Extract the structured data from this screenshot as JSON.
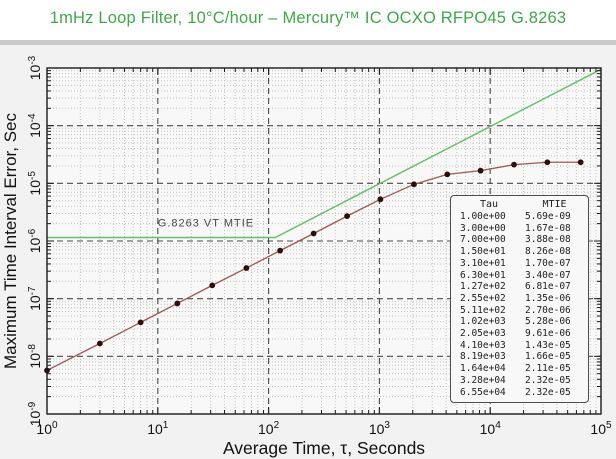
{
  "title": "1mHz Loop Filter, 10°C/hour – Mercury™ IC OCXO RFPO45 G.8263",
  "colors": {
    "title_green": "#3fa84c",
    "mask_line_green": "#6abf69",
    "series_line_red": "#9a5a50",
    "marker_dark_red": "#2d0e0e",
    "grid_major": "#4a4a4a",
    "grid_minor": "#c4c4c4",
    "frame": "#1a1a1a",
    "panel_bg": "#f2f2f2",
    "plot_bg": "#f8f8f8",
    "legend_bg": "#f8f8f8",
    "divider_gray": "#c9c9c9",
    "text_dark": "#111111",
    "annotation_gray": "#4a4a4a"
  },
  "chart_data": {
    "type": "line",
    "title": "1mHz Loop Filter, 10°C/hour – Mercury™ IC OCXO RFPO45 G.8263",
    "xlabel": "Average Time, τ, Seconds",
    "ylabel": "Maximum Time Interval Error, Sec",
    "xscale": "log",
    "yscale": "log",
    "xlim": [
      1,
      100000
    ],
    "ylim": [
      1e-09,
      0.001
    ],
    "x_tick_exponents": [
      0,
      1,
      2,
      3,
      4,
      5
    ],
    "y_tick_exponents": [
      -3,
      -4,
      -5,
      -6,
      -7,
      -8,
      -9
    ],
    "grid": "major dashed dark, minor dotted light",
    "legend_position": "lower right box",
    "annotation": {
      "text": "G.8263 VT MTIE",
      "tau": 10,
      "mtie": 1.8e-06
    },
    "series": [
      {
        "name": "G.8263 VT MTIE mask",
        "color_key": "mask_line_green",
        "markers": false,
        "points": [
          [
            1,
            1.15e-06
          ],
          [
            115,
            1.15e-06
          ],
          [
            100000,
            0.00095
          ]
        ]
      },
      {
        "name": "Measured MTIE",
        "color_key": "series_line_red",
        "markers": true,
        "points": [
          [
            1.0,
            5.69e-09
          ],
          [
            3.0,
            1.67e-08
          ],
          [
            7.0,
            3.88e-08
          ],
          [
            15.0,
            8.26e-08
          ],
          [
            31.0,
            1.7e-07
          ],
          [
            63.0,
            3.4e-07
          ],
          [
            127,
            6.81e-07
          ],
          [
            255,
            1.35e-06
          ],
          [
            511,
            2.7e-06
          ],
          [
            1020,
            5.28e-06
          ],
          [
            2050,
            9.61e-06
          ],
          [
            4100,
            1.43e-05
          ],
          [
            8190,
            1.66e-05
          ],
          [
            16400,
            2.11e-05
          ],
          [
            32800,
            2.32e-05
          ],
          [
            65500,
            2.32e-05
          ]
        ]
      }
    ],
    "legend_table": {
      "headers": [
        "Tau",
        "MTIE"
      ],
      "rows": [
        [
          "1.00e+00",
          "5.69e-09"
        ],
        [
          "3.00e+00",
          "1.67e-08"
        ],
        [
          "7.00e+00",
          "3.88e-08"
        ],
        [
          "1.50e+01",
          "8.26e-08"
        ],
        [
          "3.10e+01",
          "1.70e-07"
        ],
        [
          "6.30e+01",
          "3.40e-07"
        ],
        [
          "1.27e+02",
          "6.81e-07"
        ],
        [
          "2.55e+02",
          "1.35e-06"
        ],
        [
          "5.11e+02",
          "2.70e-06"
        ],
        [
          "1.02e+03",
          "5.28e-06"
        ],
        [
          "2.05e+03",
          "9.61e-06"
        ],
        [
          "4.10e+03",
          "1.43e-05"
        ],
        [
          "8.19e+03",
          "1.66e-05"
        ],
        [
          "1.64e+04",
          "2.11e-05"
        ],
        [
          "3.28e+04",
          "2.32e-05"
        ],
        [
          "6.55e+04",
          "2.32e-05"
        ]
      ]
    }
  }
}
